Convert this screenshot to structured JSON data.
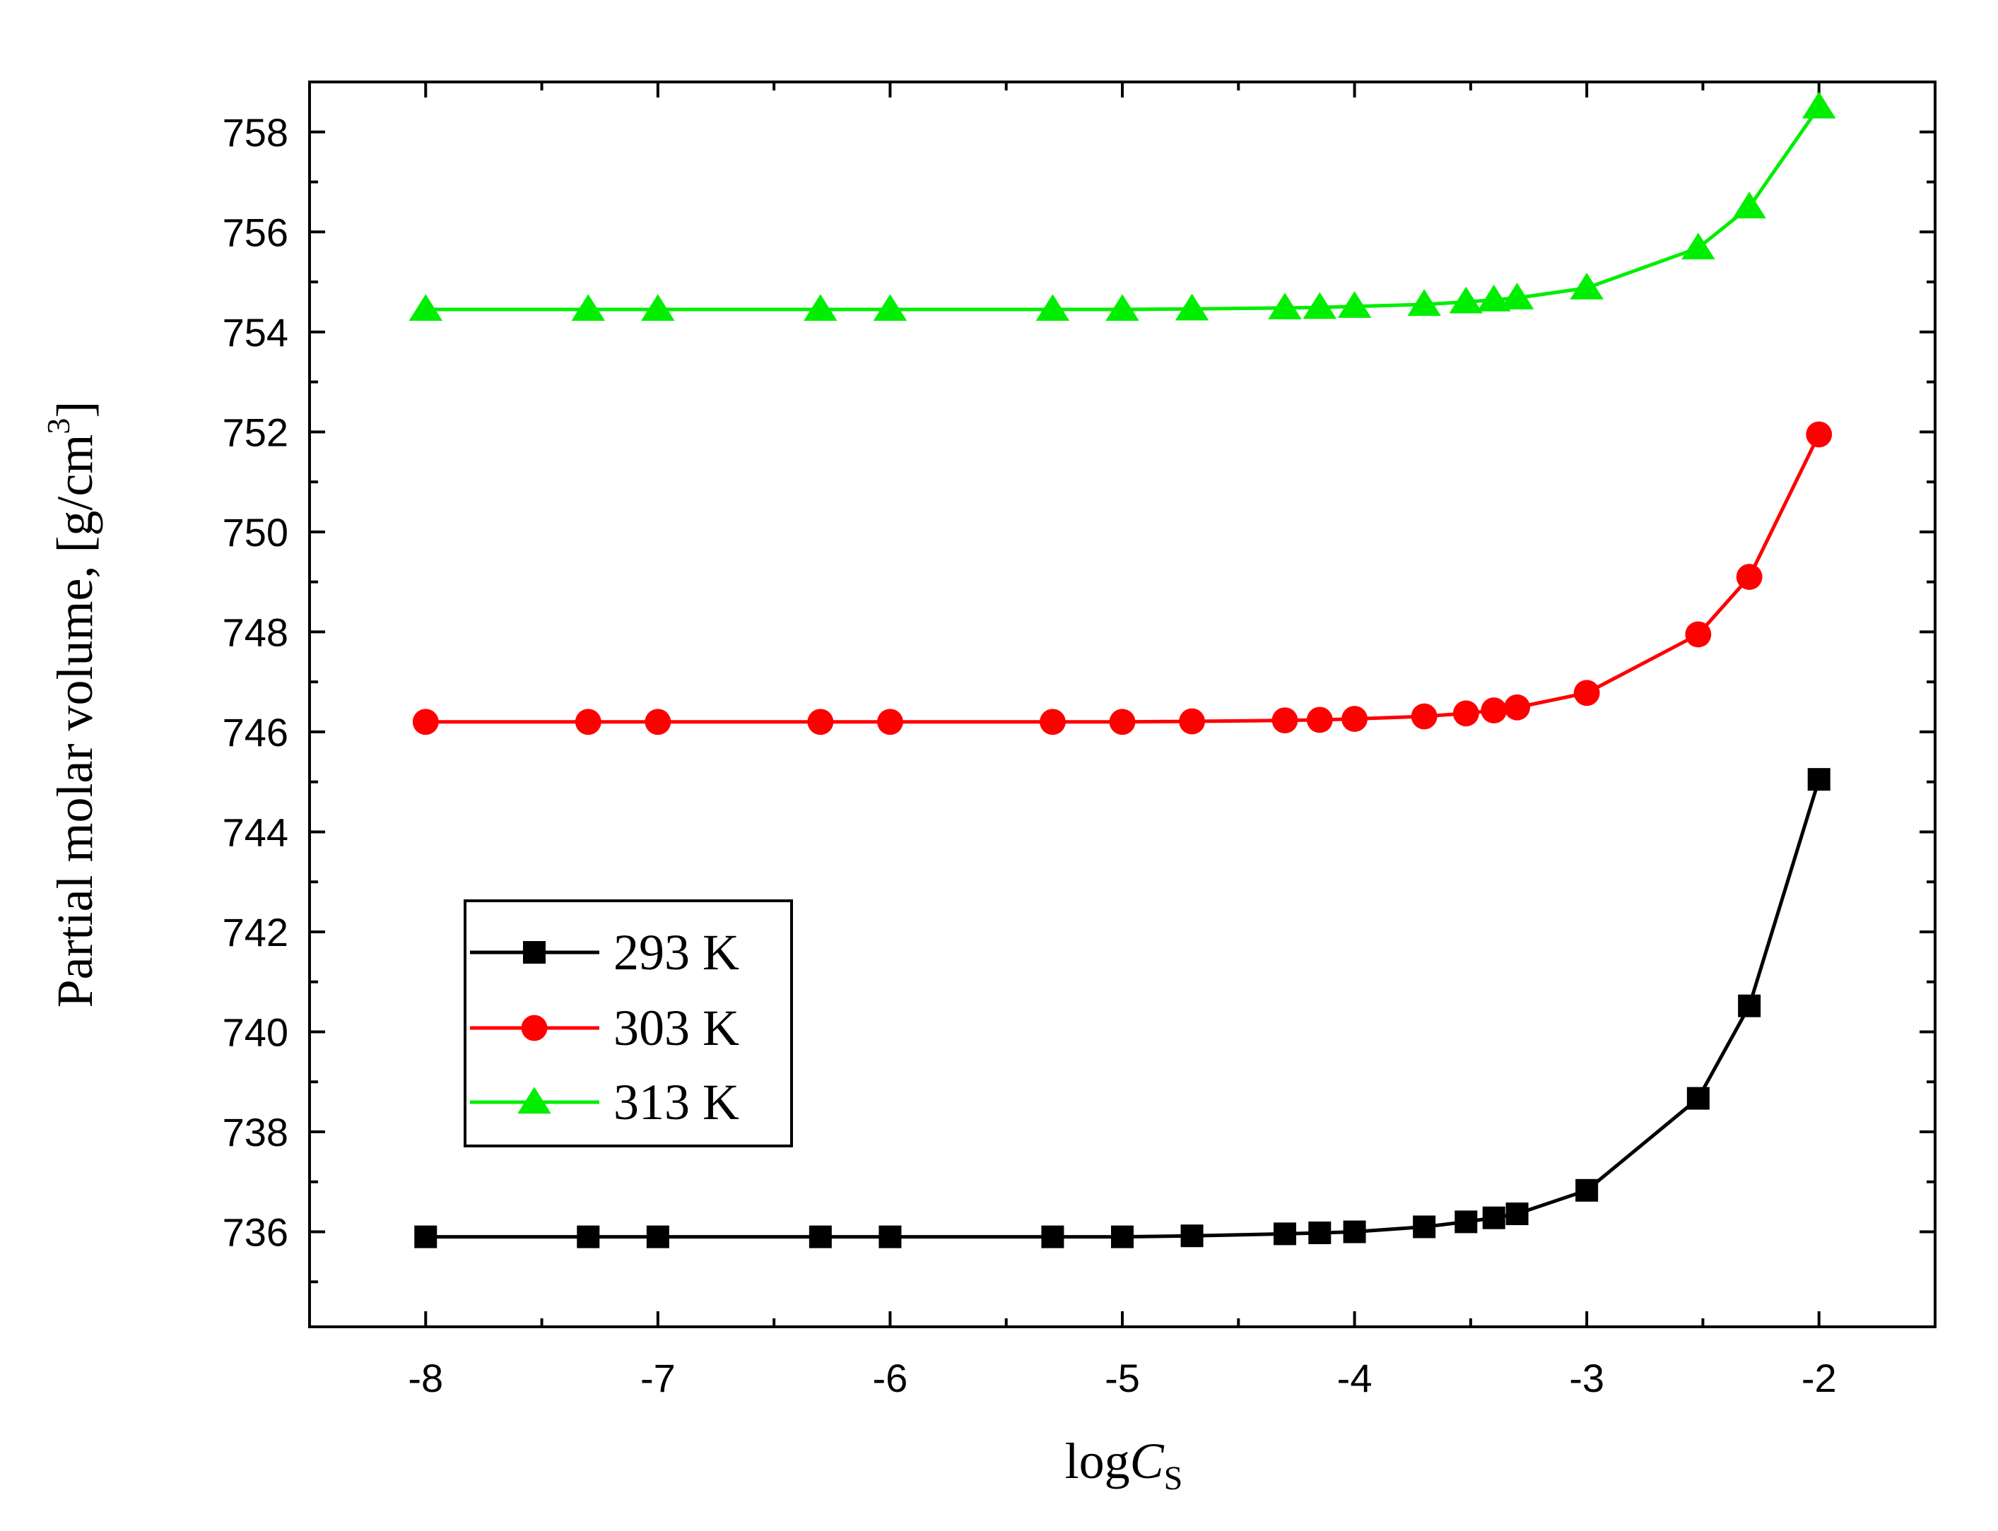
{
  "chart_data": {
    "type": "line",
    "title": "",
    "xlabel": {
      "main": "log",
      "italic": "C",
      "sub": "S"
    },
    "ylabel": {
      "main": "Partial molar volume, [g/cm",
      "sup": "3",
      "end": "]"
    },
    "xlim": [
      -8.5,
      -1.5
    ],
    "ylim": [
      734.1,
      759.0
    ],
    "xticks": [
      -8,
      -7,
      -6,
      -5,
      -4,
      -3,
      -2
    ],
    "xtick_labels": [
      "-8",
      "-7",
      "-6",
      "-5",
      "-4",
      "-3",
      "-2"
    ],
    "yticks": [
      736,
      738,
      740,
      742,
      744,
      746,
      748,
      750,
      752,
      754,
      756,
      758
    ],
    "ytick_labels": [
      "736",
      "738",
      "740",
      "742",
      "744",
      "746",
      "748",
      "750",
      "752",
      "754",
      "756",
      "758"
    ],
    "x": [
      -8,
      -7.3,
      -7,
      -6.3,
      -6,
      -5.3,
      -5,
      -4.7,
      -4.3,
      -4.15,
      -4,
      -3.7,
      -3.52,
      -3.4,
      -3.3,
      -3,
      -2.52,
      -2.3,
      -2
    ],
    "series": [
      {
        "name": "293 K",
        "color": "#000000",
        "marker": "square",
        "values": [
          735.9,
          735.9,
          735.9,
          735.9,
          735.9,
          735.9,
          735.9,
          735.92,
          735.96,
          735.98,
          736.0,
          736.1,
          736.2,
          736.28,
          736.36,
          736.83,
          738.67,
          740.52,
          745.05
        ]
      },
      {
        "name": "303 K",
        "color": "#ff0000",
        "marker": "circle",
        "values": [
          746.2,
          746.2,
          746.2,
          746.2,
          746.2,
          746.2,
          746.2,
          746.21,
          746.23,
          746.24,
          746.26,
          746.31,
          746.37,
          746.43,
          746.49,
          746.78,
          747.95,
          749.1,
          751.95
        ]
      },
      {
        "name": "313 K",
        "color": "#00ee00",
        "marker": "triangle",
        "values": [
          754.45,
          754.45,
          754.45,
          754.45,
          754.45,
          754.45,
          754.45,
          754.46,
          754.48,
          754.49,
          754.51,
          754.55,
          754.6,
          754.64,
          754.68,
          754.88,
          755.68,
          756.5,
          758.5
        ]
      }
    ],
    "legend": {
      "location": "lower-left"
    }
  }
}
